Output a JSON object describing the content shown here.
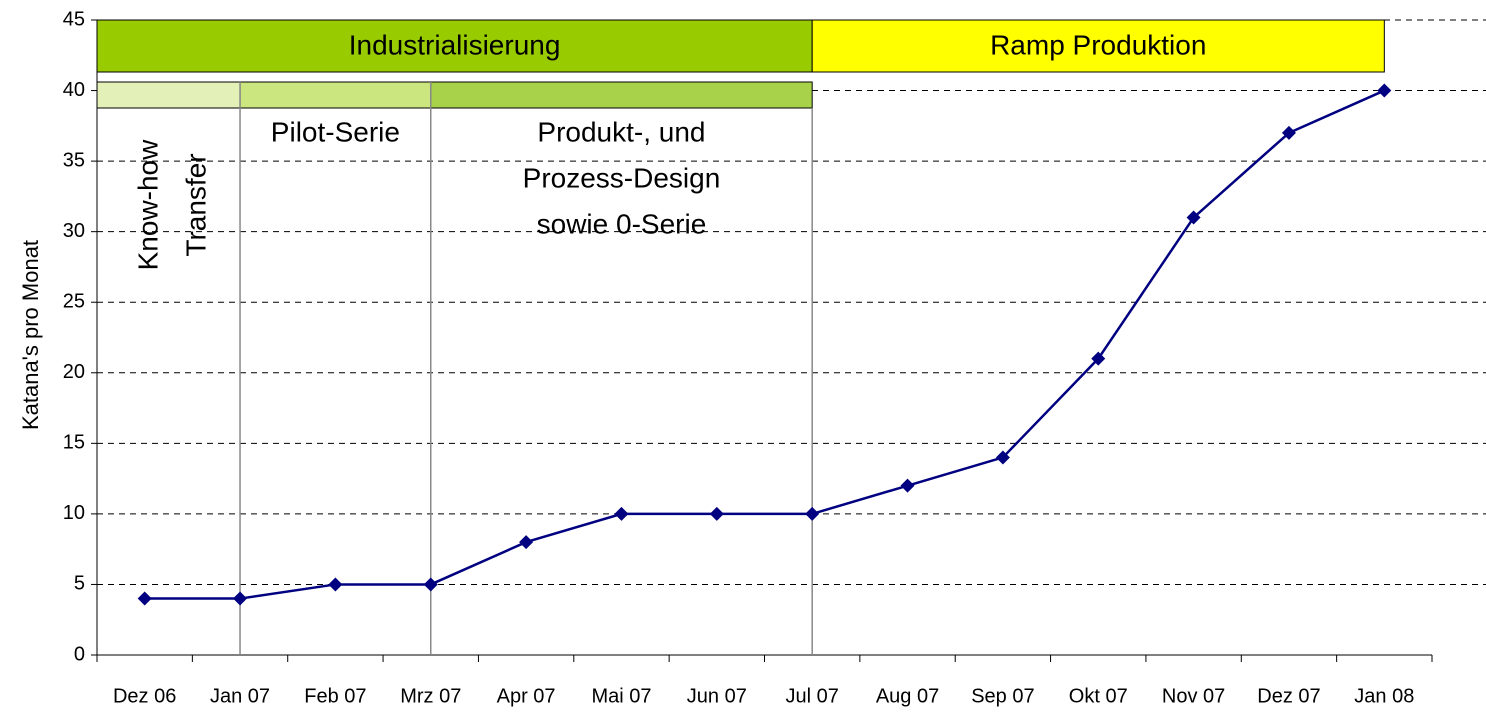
{
  "chart_data": {
    "type": "line",
    "y_label": "Katana's pro Monat",
    "categories": [
      "Dez 06",
      "Jan 07",
      "Feb 07",
      "Mrz 07",
      "Apr 07",
      "Mai 07",
      "Jun 07",
      "Jul 07",
      "Aug 07",
      "Sep 07",
      "Okt 07",
      "Nov 07",
      "Dez 07",
      "Jan 08"
    ],
    "series": [
      {
        "color": "#000080",
        "values": [
          4,
          4,
          5,
          5,
          8,
          10,
          10,
          10,
          12,
          14,
          21,
          31,
          37,
          40
        ]
      }
    ],
    "ylim": [
      0,
      45
    ],
    "yticks": [
      0,
      5,
      10,
      15,
      20,
      25,
      30,
      35,
      40,
      45
    ],
    "grid": true,
    "phases": [
      {
        "label": "Industrialisierung",
        "color": "#99cc00"
      },
      {
        "label": "Ramp Produktion",
        "color": "#ffff00"
      }
    ],
    "subphases": [
      {
        "lines": [
          "Know-how",
          "Transfer"
        ],
        "color": "#e3f1b8"
      },
      {
        "lines": [
          "Pilot-Serie"
        ],
        "color": "#cbe67e"
      },
      {
        "lines": [
          "Produkt-, und",
          "Prozess-Design",
          "sowie 0-Serie"
        ],
        "color": "#a8d24a"
      }
    ]
  }
}
